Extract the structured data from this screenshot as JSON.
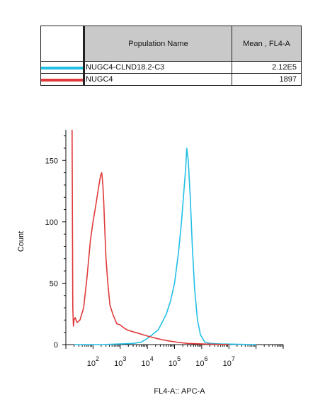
{
  "legend": {
    "header": {
      "population_name": "Population Name",
      "mean": "Mean , FL4-A"
    },
    "rows": [
      {
        "name": "NUGC4-CLND18.2-C3",
        "mean": "2.12E5",
        "color": "#22bfe6"
      },
      {
        "name": "NUGC4",
        "mean": "1897",
        "color": "#e03a3a"
      }
    ]
  },
  "chart_data": {
    "type": "line",
    "xlabel": "FL4-A:: APC-A",
    "ylabel": "Count",
    "x_scale": "log",
    "xlim": [
      10,
      1000000000
    ],
    "ylim": [
      0,
      175
    ],
    "y_ticks": [
      0,
      50,
      100,
      150
    ],
    "x_ticks": [
      100,
      1000,
      10000,
      100000,
      1000000,
      10000000
    ],
    "x_tick_labels": [
      {
        "base": "10",
        "exp": "2"
      },
      {
        "base": "10",
        "exp": "3"
      },
      {
        "base": "10",
        "exp": "4"
      },
      {
        "base": "10",
        "exp": "5"
      },
      {
        "base": "10",
        "exp": "6"
      },
      {
        "base": "10",
        "exp": "7"
      }
    ],
    "grid": false,
    "series": [
      {
        "name": "NUGC4-CLND18.2-C3",
        "color": "#22bfe6",
        "x": [
          20,
          200,
          1000,
          3000,
          6000,
          10000,
          15000,
          25000,
          35000,
          50000,
          70000,
          100000,
          140000,
          180000,
          230000,
          260000,
          280000,
          320000,
          380000,
          450000,
          550000,
          700000,
          900000,
          1300000,
          2000000,
          5000000,
          100000000
        ],
        "y": [
          0,
          0,
          0.5,
          1,
          2,
          5,
          8,
          12,
          18,
          25,
          35,
          50,
          75,
          100,
          130,
          145,
          160,
          150,
          120,
          80,
          45,
          20,
          8,
          2,
          1,
          0.5,
          0
        ]
      },
      {
        "name": "NUGC4",
        "color": "#e03a3a",
        "x": [
          17,
          18,
          19,
          20,
          22,
          26,
          33,
          45,
          60,
          80,
          100,
          130,
          160,
          190,
          210,
          230,
          250,
          270,
          300,
          350,
          420,
          550,
          750,
          1000,
          1300,
          1800,
          2500,
          3500,
          5000,
          7000,
          10000,
          15000,
          22000,
          35000,
          60000,
          120000,
          300000,
          1000000,
          10000000
        ],
        "y": [
          175,
          30,
          15,
          20,
          22,
          18,
          20,
          30,
          55,
          85,
          100,
          115,
          128,
          138,
          140,
          130,
          115,
          95,
          70,
          50,
          32,
          24,
          17,
          16,
          14,
          12,
          11,
          10,
          9,
          8,
          7,
          6,
          5,
          4,
          3,
          2,
          1,
          0.5,
          0
        ]
      }
    ]
  }
}
